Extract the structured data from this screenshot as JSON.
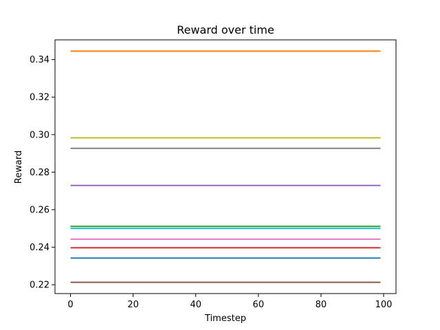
{
  "chart_data": {
    "type": "line",
    "title": "Reward over time",
    "xlabel": "Timestep",
    "ylabel": "Reward",
    "xlim": [
      -4.95,
      103.95
    ],
    "ylim": [
      0.2153,
      0.3505
    ],
    "xticks": [
      0,
      20,
      40,
      60,
      80,
      100
    ],
    "yticks": [
      0.22,
      0.24,
      0.26,
      0.28,
      0.3,
      0.32,
      0.34
    ],
    "ytick_labels": [
      "0.22",
      "0.24",
      "0.26",
      "0.28",
      "0.30",
      "0.32",
      "0.34"
    ],
    "grid": false,
    "x": [
      0,
      99
    ],
    "series": [
      {
        "color": "#1f77b4",
        "values": [
          0.2342,
          0.2342
        ]
      },
      {
        "color": "#ff7f0e",
        "values": [
          0.3445,
          0.3445
        ]
      },
      {
        "color": "#2ca02c",
        "values": [
          0.2511,
          0.2511
        ]
      },
      {
        "color": "#d62728",
        "values": [
          0.2397,
          0.2397
        ]
      },
      {
        "color": "#9467bd",
        "values": [
          0.2729,
          0.2729
        ]
      },
      {
        "color": "#8c564b",
        "values": [
          0.2213,
          0.2213
        ]
      },
      {
        "color": "#e377c2",
        "values": [
          0.2443,
          0.2443
        ]
      },
      {
        "color": "#7f7f7f",
        "values": [
          0.2927,
          0.2927
        ]
      },
      {
        "color": "#bcbd22",
        "values": [
          0.2983,
          0.2983
        ]
      },
      {
        "color": "#17becf",
        "values": [
          0.25,
          0.25
        ]
      }
    ]
  }
}
